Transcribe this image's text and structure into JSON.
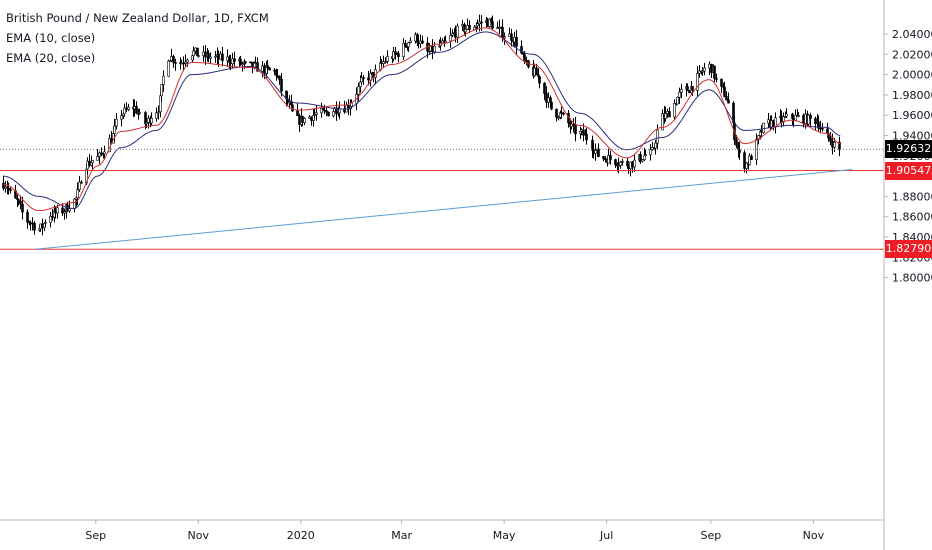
{
  "legend": {
    "title": "British Pound / New Zealand Dollar, 1D, FXCM",
    "ema10": "EMA (10, close)",
    "ema20": "EMA (20, close)"
  },
  "colors": {
    "candle": "#000000",
    "ema10": "#d32f2f",
    "ema20": "#2a2e7a",
    "trendline": "#5b9bd5",
    "hline": "#e53935",
    "last_price_bg": "#000000",
    "level_bg": "#ee1c24"
  },
  "price_tags": {
    "last": "1.92632",
    "level_upper": "1.90547",
    "level_lower": "1.82790"
  },
  "chart_data": {
    "type": "candlestick",
    "title": "British Pound / New Zealand Dollar, 1D, FXCM",
    "y_axis_ticks": [
      "2.04000",
      "2.02000",
      "2.00000",
      "1.98000",
      "1.96000",
      "1.94000",
      "1.92000",
      "1.90000",
      "1.88000",
      "1.86000",
      "1.84000",
      "1.82000",
      "1.80000"
    ],
    "x_axis_ticks": [
      "Sep",
      "Nov",
      "2020",
      "Mar",
      "May",
      "Jul",
      "Sep",
      "Nov"
    ],
    "ylim": [
      1.795,
      2.055
    ],
    "x_domain": [
      "2019-07-06",
      "2020-11-24"
    ],
    "close_path": [
      [
        "2019-07-08",
        1.893
      ],
      [
        "2019-07-15",
        1.876
      ],
      [
        "2019-07-22",
        1.856
      ],
      [
        "2019-07-29",
        1.848
      ],
      [
        "2019-08-05",
        1.862
      ],
      [
        "2019-08-12",
        1.866
      ],
      [
        "2019-08-19",
        1.876
      ],
      [
        "2019-08-26",
        1.912
      ],
      [
        "2019-09-02",
        1.918
      ],
      [
        "2019-09-09",
        1.935
      ],
      [
        "2019-09-16",
        1.962
      ],
      [
        "2019-09-23",
        1.968
      ],
      [
        "2019-09-30",
        1.952
      ],
      [
        "2019-10-07",
        1.965
      ],
      [
        "2019-10-14",
        2.018
      ],
      [
        "2019-10-21",
        2.012
      ],
      [
        "2019-10-28",
        2.022
      ],
      [
        "2019-11-04",
        2.018
      ],
      [
        "2019-11-18",
        2.015
      ],
      [
        "2019-12-02",
        2.008
      ],
      [
        "2019-12-16",
        2.003
      ],
      [
        "2019-12-23",
        1.973
      ],
      [
        "2019-12-30",
        1.955
      ],
      [
        "2020-01-13",
        1.962
      ],
      [
        "2020-01-27",
        1.968
      ],
      [
        "2020-02-10",
        1.998
      ],
      [
        "2020-02-24",
        2.018
      ],
      [
        "2020-03-09",
        2.036
      ],
      [
        "2020-03-16",
        2.022
      ],
      [
        "2020-03-23",
        2.028
      ],
      [
        "2020-04-06",
        2.045
      ],
      [
        "2020-04-20",
        2.052
      ],
      [
        "2020-05-04",
        2.038
      ],
      [
        "2020-05-18",
        2.002
      ],
      [
        "2020-06-01",
        1.962
      ],
      [
        "2020-06-15",
        1.942
      ],
      [
        "2020-06-29",
        1.918
      ],
      [
        "2020-07-13",
        1.912
      ],
      [
        "2020-07-27",
        1.922
      ],
      [
        "2020-08-03",
        1.958
      ],
      [
        "2020-08-17",
        1.985
      ],
      [
        "2020-08-31",
        2.008
      ],
      [
        "2020-09-07",
        1.985
      ],
      [
        "2020-09-21",
        1.912
      ],
      [
        "2020-10-05",
        1.952
      ],
      [
        "2020-10-19",
        1.958
      ],
      [
        "2020-11-02",
        1.955
      ],
      [
        "2020-11-09",
        1.938
      ],
      [
        "2020-11-16",
        1.926
      ]
    ],
    "ema10_path": [
      [
        "2019-07-08",
        1.892
      ],
      [
        "2019-07-29",
        1.866
      ],
      [
        "2019-08-19",
        1.874
      ],
      [
        "2019-09-02",
        1.91
      ],
      [
        "2019-09-16",
        1.944
      ],
      [
        "2019-10-07",
        1.95
      ],
      [
        "2019-10-28",
        2.012
      ],
      [
        "2019-12-02",
        2.007
      ],
      [
        "2019-12-30",
        1.965
      ],
      [
        "2020-01-27",
        1.97
      ],
      [
        "2020-02-24",
        2.01
      ],
      [
        "2020-03-23",
        2.03
      ],
      [
        "2020-04-20",
        2.046
      ],
      [
        "2020-05-18",
        2.01
      ],
      [
        "2020-06-15",
        1.95
      ],
      [
        "2020-07-13",
        1.918
      ],
      [
        "2020-08-03",
        1.948
      ],
      [
        "2020-08-31",
        1.995
      ],
      [
        "2020-09-21",
        1.932
      ],
      [
        "2020-10-19",
        1.955
      ],
      [
        "2020-11-09",
        1.942
      ],
      [
        "2020-11-17",
        1.932
      ]
    ],
    "ema20_path": [
      [
        "2019-07-08",
        1.9
      ],
      [
        "2019-07-29",
        1.88
      ],
      [
        "2019-08-19",
        1.868
      ],
      [
        "2019-09-02",
        1.9
      ],
      [
        "2019-09-16",
        1.928
      ],
      [
        "2019-10-07",
        1.945
      ],
      [
        "2019-10-28",
        2.0
      ],
      [
        "2019-12-02",
        2.008
      ],
      [
        "2019-12-30",
        1.972
      ],
      [
        "2020-01-27",
        1.966
      ],
      [
        "2020-02-24",
        2.0
      ],
      [
        "2020-03-23",
        2.022
      ],
      [
        "2020-04-20",
        2.042
      ],
      [
        "2020-05-18",
        2.02
      ],
      [
        "2020-06-15",
        1.962
      ],
      [
        "2020-07-13",
        1.926
      ],
      [
        "2020-08-03",
        1.938
      ],
      [
        "2020-08-31",
        1.985
      ],
      [
        "2020-09-21",
        1.945
      ],
      [
        "2020-10-19",
        1.95
      ],
      [
        "2020-11-09",
        1.948
      ],
      [
        "2020-11-17",
        1.94
      ]
    ],
    "horizontal_levels": [
      1.92632,
      1.90547,
      1.8279
    ],
    "trendline": [
      [
        "2019-07-27",
        1.8279
      ],
      [
        "2020-11-24",
        1.9065
      ]
    ]
  }
}
